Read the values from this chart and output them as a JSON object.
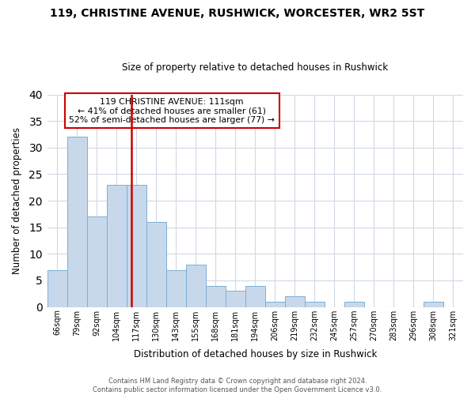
{
  "title": "119, CHRISTINE AVENUE, RUSHWICK, WORCESTER, WR2 5ST",
  "subtitle": "Size of property relative to detached houses in Rushwick",
  "xlabel": "Distribution of detached houses by size in Rushwick",
  "ylabel": "Number of detached properties",
  "categories": [
    "66sqm",
    "79sqm",
    "92sqm",
    "104sqm",
    "117sqm",
    "130sqm",
    "143sqm",
    "155sqm",
    "168sqm",
    "181sqm",
    "194sqm",
    "206sqm",
    "219sqm",
    "232sqm",
    "245sqm",
    "257sqm",
    "270sqm",
    "283sqm",
    "296sqm",
    "308sqm",
    "321sqm"
  ],
  "values": [
    7,
    32,
    17,
    23,
    23,
    16,
    7,
    8,
    4,
    3,
    4,
    1,
    2,
    1,
    0,
    1,
    0,
    0,
    0,
    1,
    0
  ],
  "bar_color": "#c8d8eb",
  "bar_edge_color": "#7bafd4",
  "vline_x_idx": 3.75,
  "vline_color": "#cc0000",
  "annotation_title": "119 CHRISTINE AVENUE: 111sqm",
  "annotation_line1": "← 41% of detached houses are smaller (61)",
  "annotation_line2": "52% of semi-detached houses are larger (77) →",
  "annotation_box_color": "#ffffff",
  "annotation_box_edge": "#cc0000",
  "ylim": [
    0,
    40
  ],
  "yticks": [
    0,
    5,
    10,
    15,
    20,
    25,
    30,
    35,
    40
  ],
  "footer_line1": "Contains HM Land Registry data © Crown copyright and database right 2024.",
  "footer_line2": "Contains public sector information licensed under the Open Government Licence v3.0.",
  "bg_color": "#ffffff",
  "plot_bg_color": "#ffffff",
  "grid_color": "#d0d8e4"
}
